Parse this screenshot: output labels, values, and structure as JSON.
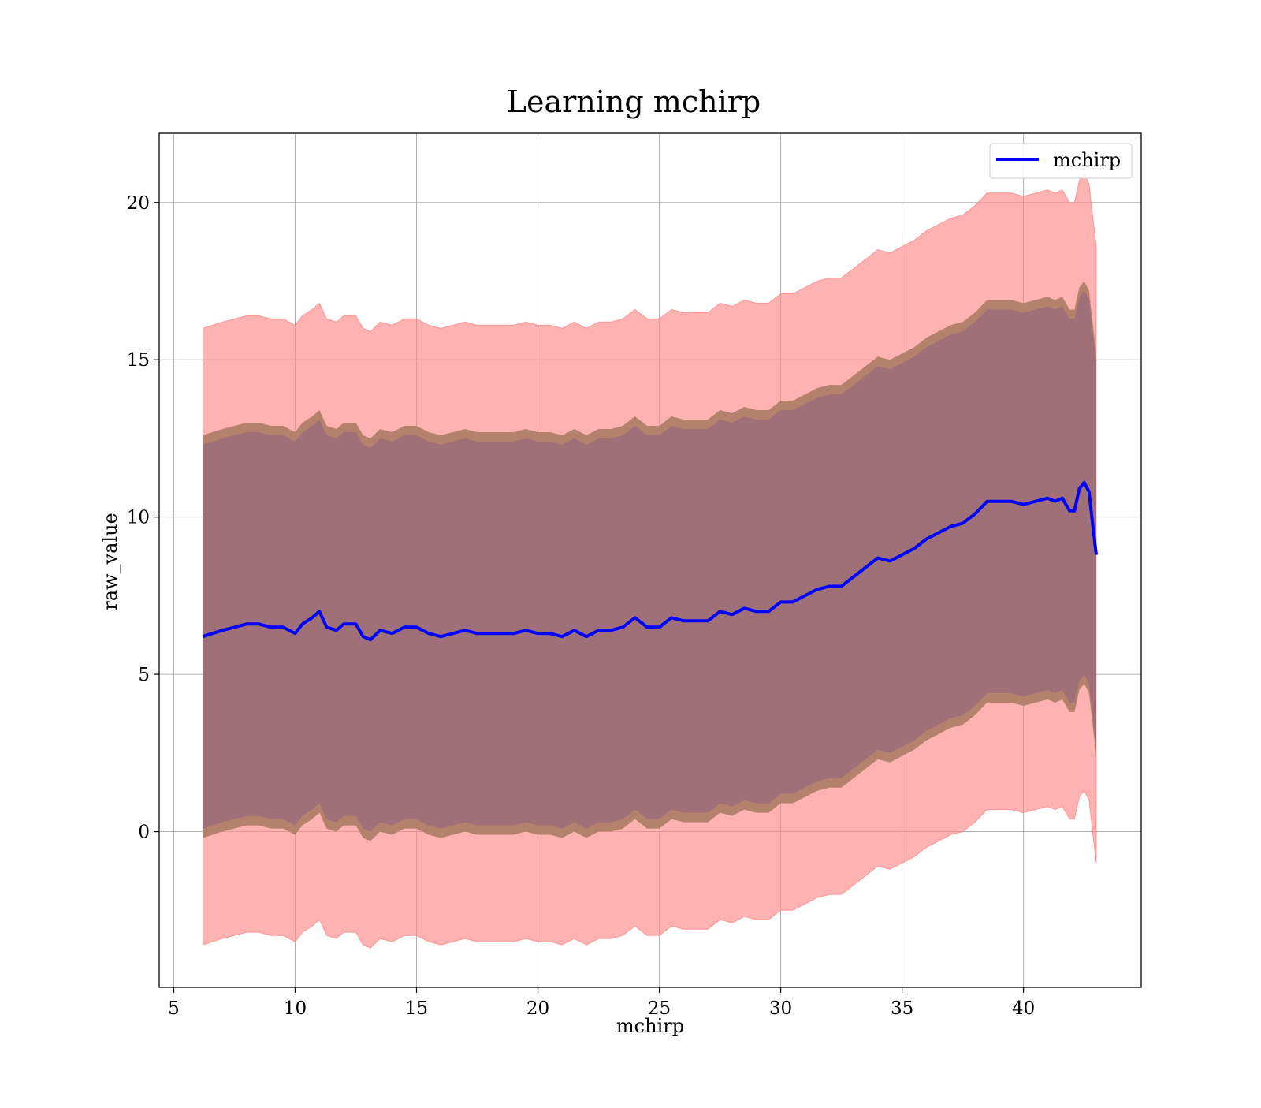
{
  "chart_data": {
    "type": "line",
    "title": "Learning mchirp",
    "xlabel": "mchirp",
    "ylabel": "raw_value",
    "xlim": [
      4.4,
      44.85
    ],
    "ylim": [
      -4.95,
      22.2
    ],
    "xticks": [
      5,
      10,
      15,
      20,
      25,
      30,
      35,
      40
    ],
    "yticks": [
      0,
      5,
      10,
      15,
      20
    ],
    "xtick_labels": [
      "5",
      "10",
      "15",
      "20",
      "25",
      "30",
      "35",
      "40"
    ],
    "ytick_labels": [
      "0",
      "5",
      "10",
      "15",
      "20"
    ],
    "grid": true,
    "legend": {
      "position": "top-right",
      "entries": [
        "mchirp"
      ]
    },
    "colors": {
      "line": "#0000ff",
      "outer_band": "#ff8888",
      "inner_band": "#a07078",
      "inner_band_edge": "#b08068",
      "grid": "#b0b0b0"
    },
    "series": [
      {
        "name": "mchirp",
        "x": [
          6.2,
          7.0,
          7.5,
          8.0,
          8.5,
          9.0,
          9.5,
          10.0,
          10.3,
          10.7,
          11.0,
          11.3,
          11.7,
          12.0,
          12.5,
          12.8,
          13.1,
          13.5,
          14.0,
          14.5,
          15.0,
          15.5,
          16.0,
          16.5,
          17.0,
          17.5,
          18.0,
          18.5,
          19.0,
          19.5,
          20.0,
          20.5,
          21.0,
          21.5,
          22.0,
          22.5,
          23.0,
          23.5,
          24.0,
          24.5,
          25.0,
          25.5,
          26.0,
          26.5,
          27.0,
          27.5,
          28.0,
          28.5,
          29.0,
          29.5,
          30.0,
          30.5,
          31.0,
          31.5,
          32.0,
          32.5,
          33.0,
          33.5,
          34.0,
          34.5,
          35.0,
          35.5,
          36.0,
          36.5,
          37.0,
          37.5,
          38.0,
          38.5,
          39.0,
          39.5,
          40.0,
          40.5,
          41.0,
          41.3,
          41.6,
          41.9,
          42.1,
          42.3,
          42.5,
          42.7,
          42.8,
          43.0
        ],
        "y": [
          6.2,
          6.4,
          6.5,
          6.6,
          6.6,
          6.5,
          6.5,
          6.3,
          6.6,
          6.8,
          7.0,
          6.5,
          6.4,
          6.6,
          6.6,
          6.2,
          6.1,
          6.4,
          6.3,
          6.5,
          6.5,
          6.3,
          6.2,
          6.3,
          6.4,
          6.3,
          6.3,
          6.3,
          6.3,
          6.4,
          6.3,
          6.3,
          6.2,
          6.4,
          6.2,
          6.4,
          6.4,
          6.5,
          6.8,
          6.5,
          6.5,
          6.8,
          6.7,
          6.7,
          6.7,
          7.0,
          6.9,
          7.1,
          7.0,
          7.0,
          7.3,
          7.3,
          7.5,
          7.7,
          7.8,
          7.8,
          8.1,
          8.4,
          8.7,
          8.6,
          8.8,
          9.0,
          9.3,
          9.5,
          9.7,
          9.8,
          10.1,
          10.5,
          10.5,
          10.5,
          10.4,
          10.5,
          10.6,
          10.5,
          10.6,
          10.2,
          10.2,
          10.9,
          11.1,
          10.8,
          10.1,
          8.8
        ]
      }
    ],
    "bands": [
      {
        "label": "outer",
        "offset_upper": 9.8,
        "offset_lower": 9.8
      },
      {
        "label": "inner",
        "offset_upper": 6.4,
        "offset_lower": 6.4
      }
    ]
  }
}
